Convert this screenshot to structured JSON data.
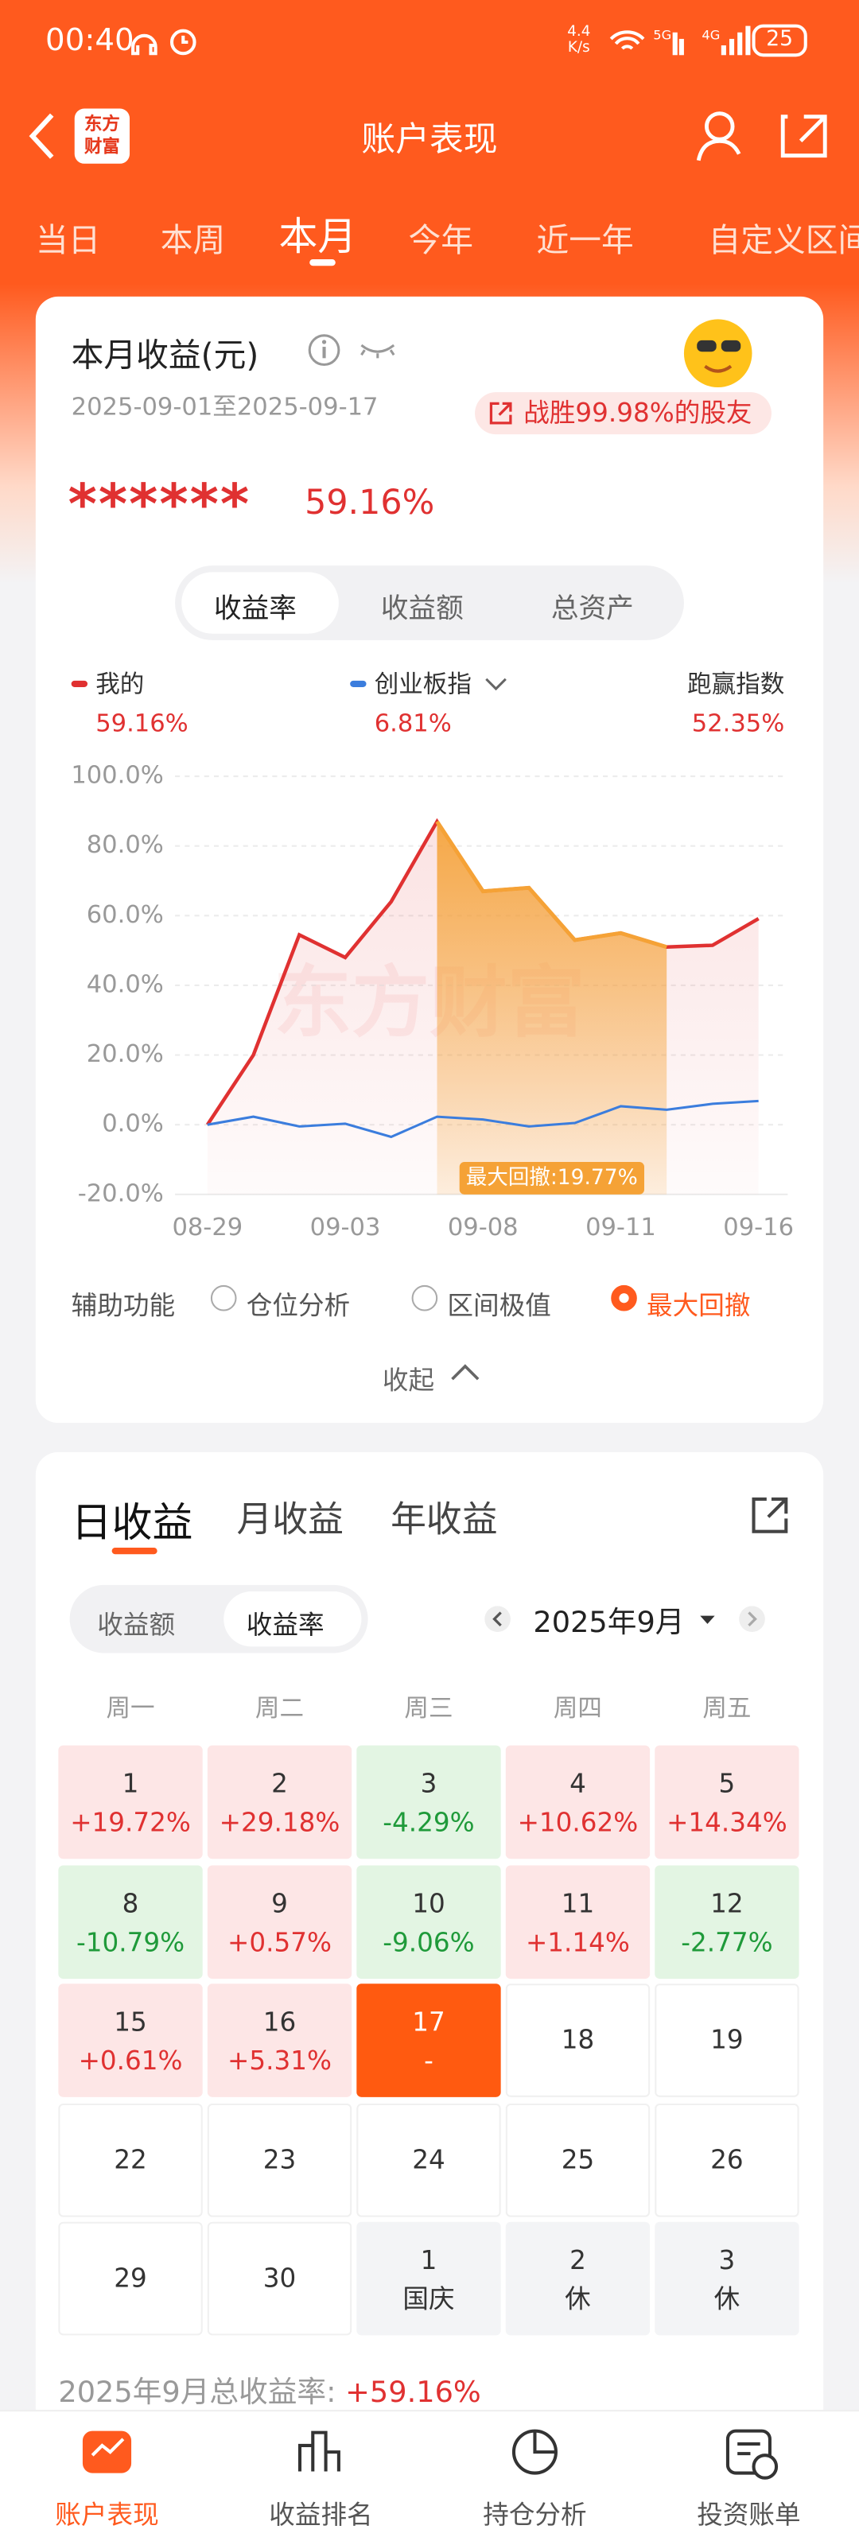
{
  "status_bar": {
    "time": "00:40",
    "speed_value": "4.4",
    "speed_unit": "K/s",
    "battery": "25"
  },
  "header": {
    "title": "账户表现",
    "logo_top": "东方",
    "logo_bottom": "财富"
  },
  "period_tabs": {
    "items": [
      "当日",
      "本周",
      "本月",
      "今年",
      "近一年",
      "自定义区间"
    ],
    "active": 2
  },
  "summary": {
    "title": "本月收益(元)",
    "date_range": "2025-09-01至2025-09-17",
    "badge": "战胜99.98%的股友",
    "hidden_amount": "******",
    "return": "59.16%"
  },
  "metric_tabs": {
    "items": [
      "收益率",
      "收益额",
      "总资产"
    ],
    "active": 0
  },
  "chart_data": {
    "type": "line",
    "watermark": "东方财富",
    "categories": [
      "08-29",
      null,
      null,
      "09-03",
      null,
      null,
      "09-08",
      null,
      null,
      "09-11",
      null,
      null,
      "09-16"
    ],
    "series": [
      {
        "name": "我的",
        "color": "#e03131",
        "value_label": "59.16%",
        "values": [
          0,
          20,
          54.5,
          48,
          64,
          87,
          67,
          68,
          53,
          55,
          51,
          51.5,
          59.16
        ]
      },
      {
        "name": "创业板指",
        "color": "#3b7ddd",
        "value_label": "6.81%",
        "values": [
          0,
          2.3,
          -0.5,
          0.3,
          -3.5,
          2.3,
          1.5,
          -0.5,
          0.5,
          5.3,
          4.3,
          6,
          6.81
        ]
      }
    ],
    "outperform": {
      "label": "跑赢指数",
      "value": "52.35%"
    },
    "drawdown": {
      "label": "最大回撤:19.77%",
      "start": 5,
      "end": 10,
      "color": "#f5a236"
    },
    "ylim": [
      -20,
      100
    ],
    "yticks": [
      {
        "value": -20,
        "label": "-20.0%"
      },
      {
        "value": 0,
        "label": "0.0%"
      },
      {
        "value": 20,
        "label": "20.0%"
      },
      {
        "value": 40,
        "label": "40.0%"
      },
      {
        "value": 60,
        "label": "60.0%"
      },
      {
        "value": 80,
        "label": "80.0%"
      },
      {
        "value": 100,
        "label": "100.0%"
      }
    ],
    "grid": true
  },
  "aux": {
    "label": "辅助功能",
    "options": [
      "仓位分析",
      "区间极值",
      "最大回撤"
    ],
    "active": 2
  },
  "collapse": "收起",
  "calendar": {
    "tabs": [
      "日收益",
      "月收益",
      "年收益"
    ],
    "active_tab": 0,
    "toggle": [
      "收益额",
      "收益率"
    ],
    "active_toggle": 1,
    "month": "2025年9月",
    "weekdays": [
      "周一",
      "周二",
      "周三",
      "周四",
      "周五"
    ],
    "weeks": [
      [
        {
          "day": "1",
          "text": "+19.72%",
          "state": "up"
        },
        {
          "day": "2",
          "text": "+29.18%",
          "state": "up"
        },
        {
          "day": "3",
          "text": "-4.29%",
          "state": "down"
        },
        {
          "day": "4",
          "text": "+10.62%",
          "state": "up"
        },
        {
          "day": "5",
          "text": "+14.34%",
          "state": "up"
        }
      ],
      [
        {
          "day": "8",
          "text": "-10.79%",
          "state": "down"
        },
        {
          "day": "9",
          "text": "+0.57%",
          "state": "up"
        },
        {
          "day": "10",
          "text": "-9.06%",
          "state": "down"
        },
        {
          "day": "11",
          "text": "+1.14%",
          "state": "up"
        },
        {
          "day": "12",
          "text": "-2.77%",
          "state": "down"
        }
      ],
      [
        {
          "day": "15",
          "text": "+0.61%",
          "state": "up"
        },
        {
          "day": "16",
          "text": "+5.31%",
          "state": "up"
        },
        {
          "day": "17",
          "text": "-",
          "state": "selected"
        },
        {
          "day": "18",
          "state": "empty"
        },
        {
          "day": "19",
          "state": "empty"
        }
      ],
      [
        {
          "day": "22",
          "state": "empty"
        },
        {
          "day": "23",
          "state": "empty"
        },
        {
          "day": "24",
          "state": "empty"
        },
        {
          "day": "25",
          "state": "empty"
        },
        {
          "day": "26",
          "state": "empty"
        }
      ],
      [
        {
          "day": "29",
          "state": "empty"
        },
        {
          "day": "30",
          "state": "empty"
        },
        {
          "day": "1",
          "text": "国庆",
          "state": "holiday"
        },
        {
          "day": "2",
          "text": "休",
          "state": "holiday"
        },
        {
          "day": "3",
          "text": "休",
          "state": "holiday"
        }
      ]
    ]
  },
  "total": {
    "label": "2025年9月总收益率:",
    "value": "+59.16%"
  },
  "nav": {
    "items": [
      "账户表现",
      "收益排名",
      "持仓分析",
      "投资账单"
    ],
    "active": 0
  }
}
